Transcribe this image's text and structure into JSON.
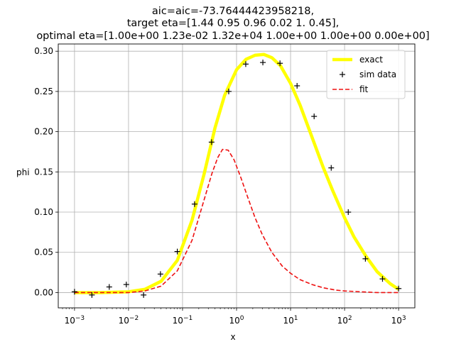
{
  "chart_data": {
    "type": "line",
    "title_lines": [
      "aic=aic=-73.76444423958218,",
      "target eta=[1.44 0.95 0.96 0.02 1.   0.45],",
      "optimal eta=[1.00e+00 1.23e-02 1.32e+04 1.00e+00 1.00e+00 0.00e+00]"
    ],
    "xlabel": "x",
    "ylabel": "phi",
    "xscale": "log",
    "xlim": [
      0.0005,
      2000
    ],
    "ylim": [
      -0.019,
      0.309
    ],
    "grid": true,
    "legend_position": "top-right",
    "x_ticks": [
      {
        "base": "10",
        "exp": "−3",
        "value": 0.001
      },
      {
        "base": "10",
        "exp": "−2",
        "value": 0.01
      },
      {
        "base": "10",
        "exp": "−1",
        "value": 0.1
      },
      {
        "base": "10",
        "exp": "0",
        "value": 1
      },
      {
        "base": "10",
        "exp": "1",
        "value": 10
      },
      {
        "base": "10",
        "exp": "2",
        "value": 100
      },
      {
        "base": "10",
        "exp": "3",
        "value": 1000
      }
    ],
    "y_ticks": [
      {
        "label": "0.00",
        "value": 0.0
      },
      {
        "label": "0.05",
        "value": 0.05
      },
      {
        "label": "0.10",
        "value": 0.1
      },
      {
        "label": "0.15",
        "value": 0.15
      },
      {
        "label": "0.20",
        "value": 0.2
      },
      {
        "label": "0.25",
        "value": 0.25
      },
      {
        "label": "0.30",
        "value": 0.3
      }
    ],
    "series": [
      {
        "name": "exact",
        "style": "line",
        "color": "#ffff00",
        "x": [
          0.001,
          0.003,
          0.01,
          0.02,
          0.04,
          0.08,
          0.15,
          0.25,
          0.4,
          0.6,
          1.0,
          1.5,
          2.2,
          3.2,
          4.5,
          6.5,
          10,
          15,
          25,
          40,
          60,
          100,
          150,
          250,
          400,
          700,
          1000
        ],
        "y": [
          0.0,
          0.0,
          0.001,
          0.004,
          0.014,
          0.04,
          0.09,
          0.147,
          0.205,
          0.245,
          0.277,
          0.29,
          0.295,
          0.296,
          0.292,
          0.282,
          0.26,
          0.233,
          0.193,
          0.156,
          0.127,
          0.093,
          0.069,
          0.045,
          0.026,
          0.011,
          0.004
        ]
      },
      {
        "name": "sim data",
        "style": "marker",
        "color": "#000000",
        "x": [
          0.001,
          0.0021,
          0.0044,
          0.0091,
          0.019,
          0.039,
          0.08,
          0.167,
          0.345,
          0.716,
          1.48,
          3.07,
          6.37,
          13.2,
          27.3,
          56.6,
          117,
          243,
          504,
          1000
        ],
        "y": [
          0.001,
          -0.003,
          0.007,
          0.01,
          -0.003,
          0.023,
          0.051,
          0.11,
          0.187,
          0.25,
          0.284,
          0.286,
          0.285,
          0.257,
          0.219,
          0.155,
          0.1,
          0.042,
          0.017,
          0.005
        ]
      },
      {
        "name": "fit",
        "style": "dashed",
        "color": "#ee1111",
        "x": [
          0.001,
          0.003,
          0.01,
          0.02,
          0.04,
          0.08,
          0.15,
          0.25,
          0.35,
          0.45,
          0.55,
          0.7,
          0.9,
          1.2,
          1.6,
          2.2,
          3.0,
          4.5,
          7,
          10,
          15,
          25,
          40,
          70,
          100,
          200,
          400,
          700,
          1000
        ],
        "y": [
          0.0,
          0.0,
          0.0,
          0.002,
          0.008,
          0.027,
          0.065,
          0.115,
          0.148,
          0.168,
          0.178,
          0.177,
          0.165,
          0.143,
          0.119,
          0.093,
          0.072,
          0.05,
          0.033,
          0.024,
          0.016,
          0.01,
          0.006,
          0.003,
          0.002,
          0.001,
          0.0,
          0.0,
          0.0
        ]
      }
    ]
  }
}
